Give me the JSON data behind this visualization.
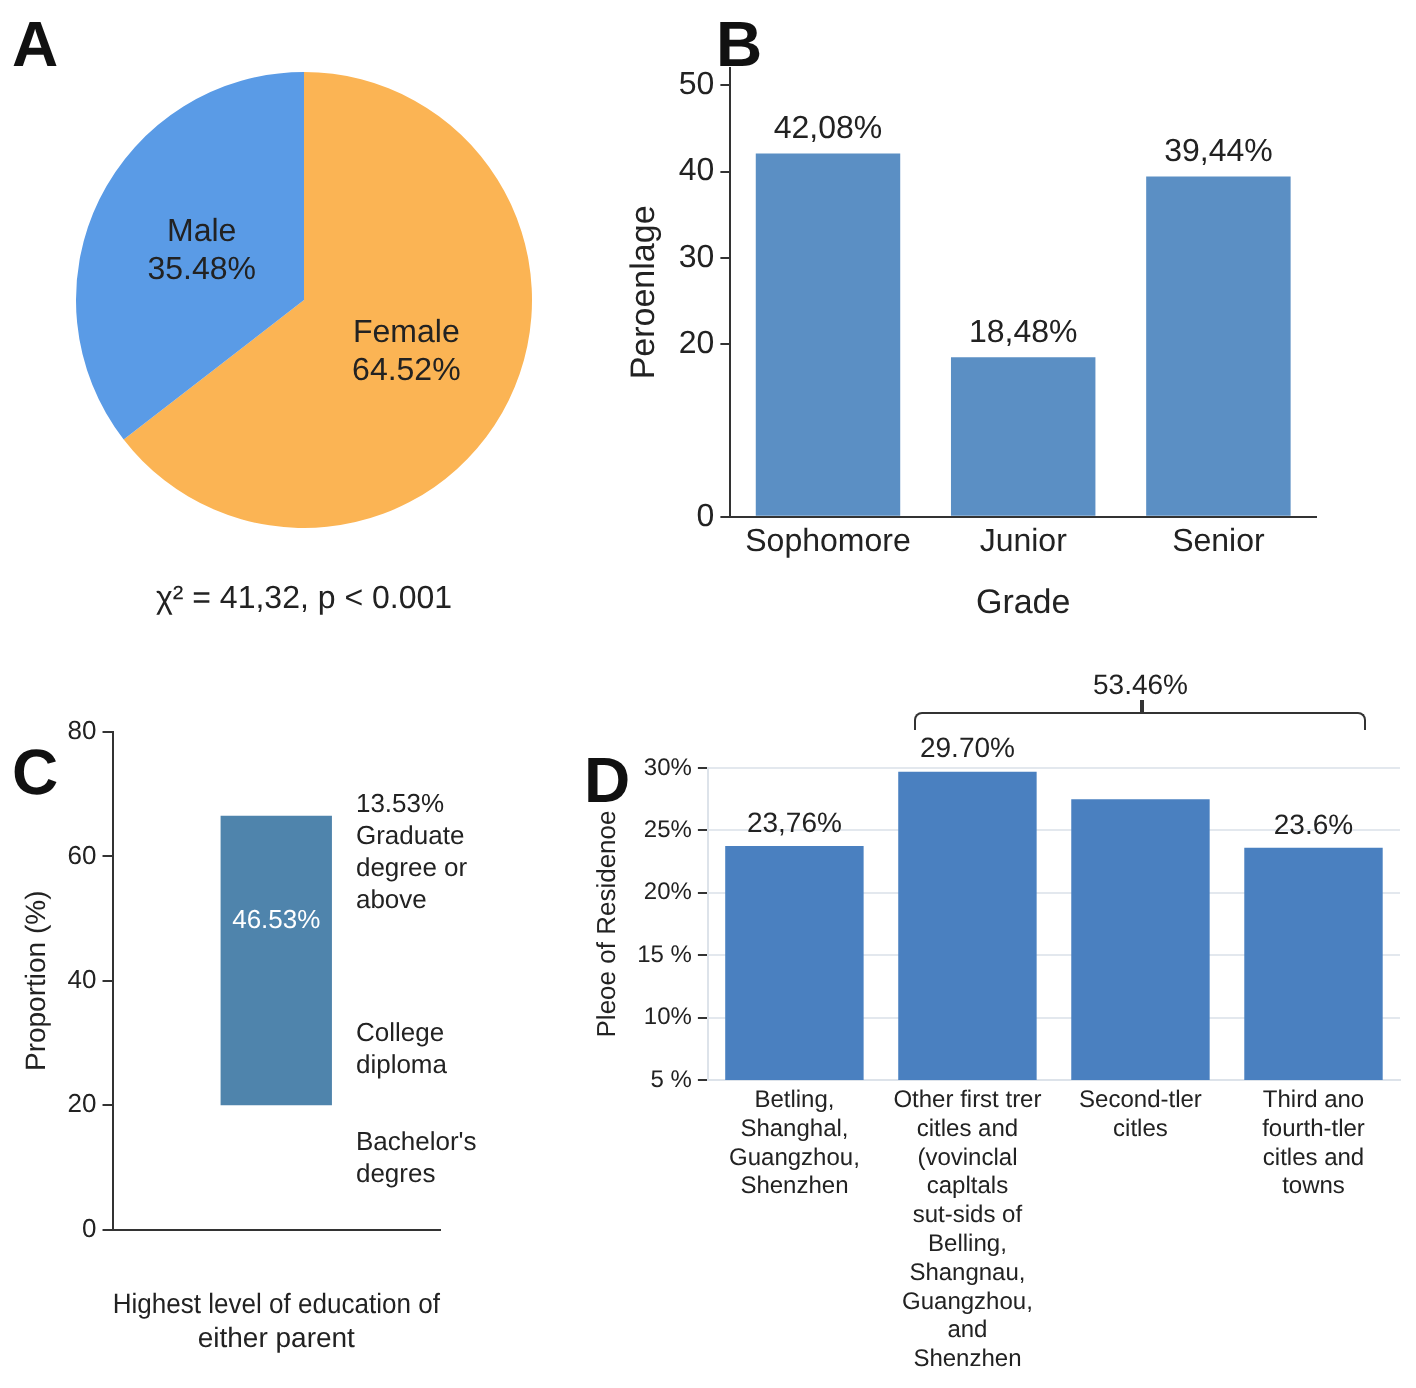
{
  "chart_data": [
    {
      "type": "pie",
      "title": "A",
      "categories": [
        "Female",
        "Male"
      ],
      "values": [
        64.52,
        35.48
      ],
      "colors": [
        "#fbb454",
        "#5a9be6"
      ],
      "value_labels": [
        "64.52%",
        "35.48%"
      ],
      "annotations": [
        "χ² = 41,32, p < 0.001"
      ]
    },
    {
      "type": "bar",
      "title": "B",
      "categories": [
        "Sophomore",
        "Junior",
        "Senior"
      ],
      "values": [
        42.08,
        18.48,
        39.44
      ],
      "color": "#5b8fc4",
      "xlabel": "Grade",
      "ylabel": "Peroenlage",
      "ylim": [
        0,
        52
      ],
      "yticks": [
        0,
        20,
        30,
        40,
        50
      ],
      "value_labels": [
        "42,08%",
        "18,48%",
        "39,44%"
      ]
    },
    {
      "type": "bar",
      "title": "C",
      "categories": [
        null
      ],
      "base": [
        20
      ],
      "values": [
        46.53
      ],
      "color": "#4f84ac",
      "xlabel": "Highest level of education of either parent",
      "ylabel": "Proportion (%)",
      "ylim": [
        0,
        80
      ],
      "yticks": [
        0,
        20,
        40,
        60,
        80
      ],
      "value_labels": [
        "46.53%"
      ],
      "annotations": [
        "13.53% Graduate degree or above",
        "College diploma",
        "Bachelor's degres"
      ]
    },
    {
      "type": "bar",
      "title": "D",
      "categories": [
        "Betling, Shanghal, Guangzhou, Shenzhen",
        "Other first trer citles and (vovinclal capltals sut-sids of Belling, Shangnau, Guangzhou, and Shenzhen",
        "Second-tler citles",
        "Third ano fourth-tler citles and towns"
      ],
      "values": [
        23.76,
        29.7,
        27.5,
        23.6
      ],
      "color": "#4a80c0",
      "ylabel": "Pleoe of Residenoe",
      "ylim": [
        5,
        30
      ],
      "yticks": [
        {
          "value": 5,
          "label": "5 %"
        },
        {
          "value": 10,
          "label": "10%"
        },
        {
          "value": 15,
          "label": "15 %"
        },
        {
          "value": 20,
          "label": "20%"
        },
        {
          "value": 25,
          "label": "25%"
        },
        {
          "value": 30,
          "label": "30%"
        }
      ],
      "grid": "y",
      "value_labels": [
        "23,76%",
        "29.70%",
        null,
        "23.6%"
      ],
      "annotations": [
        "53.46%"
      ]
    }
  ]
}
